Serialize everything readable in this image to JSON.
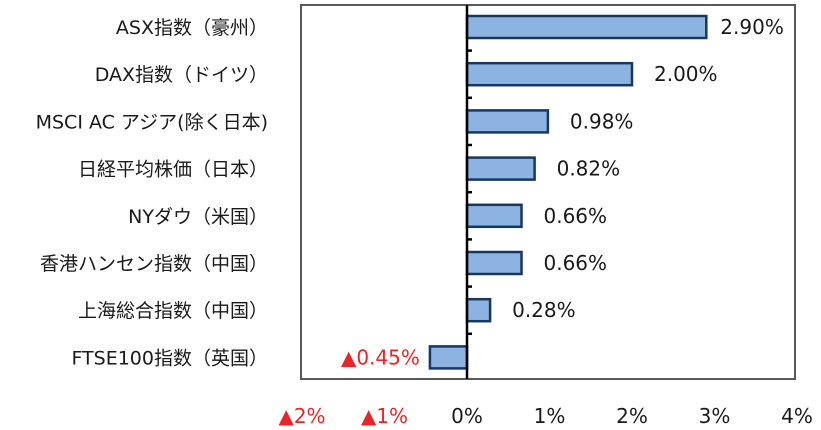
{
  "chart_data": {
    "type": "bar",
    "orientation": "horizontal",
    "categories": [
      "ASX指数（豪州）",
      "DAX指数（ドイツ）",
      "MSCI AC アジア(除く日本)",
      "日経平均株価（日本）",
      "NYダウ（米国）",
      "香港ハンセン指数（中国）",
      "上海総合指数（中国）",
      "FTSE100指数（英国）"
    ],
    "values": [
      2.9,
      2.0,
      0.98,
      0.82,
      0.66,
      0.66,
      0.28,
      -0.45
    ],
    "value_labels": [
      "2.90%",
      "2.00%",
      "0.98%",
      "0.82%",
      "0.66%",
      "0.66%",
      "0.28%",
      "▲0.45%"
    ],
    "xlim": [
      -2,
      4
    ],
    "xticks": [
      -2,
      -1,
      0,
      1,
      2,
      3,
      4
    ],
    "xtick_labels": [
      "▲2%",
      "▲1%",
      "0%",
      "1%",
      "2%",
      "3%",
      "4%"
    ],
    "grid": false,
    "colors": {
      "bar_fill": "#8db3e2",
      "bar_stroke": "#17375e",
      "frame": "#595959",
      "zero_line": "#000000",
      "positive_text": "#1a1a1a",
      "negative_text": "#e8262a"
    }
  }
}
